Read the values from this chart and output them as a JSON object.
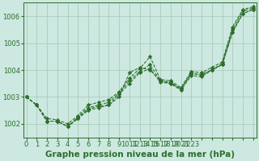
{
  "title": "Graphe pression niveau de la mer (hPa)",
  "bg_color": "#cce8e0",
  "grid_color": "#aaccbb",
  "line_color": "#2d6e2d",
  "series": [
    [
      1003.0,
      1002.7,
      1002.1,
      1002.1,
      1001.9,
      1002.2,
      1002.5,
      1002.6,
      1002.7,
      1003.0,
      1003.9,
      1004.1,
      1004.0,
      1003.6,
      1003.5,
      1003.3,
      1003.9,
      1003.8,
      1004.0,
      1004.2,
      1005.4,
      1006.1,
      1006.25
    ],
    [
      1003.0,
      1002.7,
      1002.1,
      1002.1,
      1001.9,
      1002.2,
      1002.55,
      1002.65,
      1002.7,
      1003.1,
      1003.5,
      1003.9,
      1004.05,
      1003.55,
      1003.5,
      1003.25,
      1003.8,
      1003.75,
      1004.0,
      1004.2,
      1005.4,
      1006.1,
      1006.25
    ],
    [
      1003.0,
      1002.7,
      1002.1,
      1002.1,
      1001.9,
      1002.25,
      1002.6,
      1002.7,
      1002.8,
      1003.15,
      1003.6,
      1003.95,
      1004.2,
      1003.6,
      1003.55,
      1003.3,
      1003.85,
      1003.85,
      1004.0,
      1004.25,
      1005.5,
      1006.2,
      1006.3
    ],
    [
      1003.0,
      1002.7,
      1002.2,
      1002.15,
      1002.0,
      1002.3,
      1002.7,
      1002.8,
      1002.9,
      1003.2,
      1003.7,
      1004.05,
      1004.5,
      1003.65,
      1003.6,
      1003.35,
      1003.95,
      1003.9,
      1004.1,
      1004.3,
      1005.6,
      1006.25,
      1006.35
    ]
  ],
  "xtick_positions": [
    0,
    1,
    2,
    3,
    4,
    5,
    6,
    7,
    8,
    9,
    10,
    11,
    12,
    13,
    14,
    15,
    16,
    17,
    18,
    19,
    20,
    21,
    22
  ],
  "xtick_labels": [
    "0",
    "1",
    "2",
    "3",
    "4",
    "5",
    "6",
    "7",
    "8",
    "9",
    "1011",
    "1213",
    "1415",
    "1617",
    "1819",
    "2021",
    "2223",
    "",
    "",
    "",
    "",
    "",
    ""
  ],
  "ylim": [
    1001.5,
    1006.5
  ],
  "yticks": [
    1002,
    1003,
    1004,
    1005,
    1006
  ],
  "xlim": [
    -0.3,
    22.3
  ],
  "title_fontsize": 7.5,
  "tick_fontsize": 6.0
}
